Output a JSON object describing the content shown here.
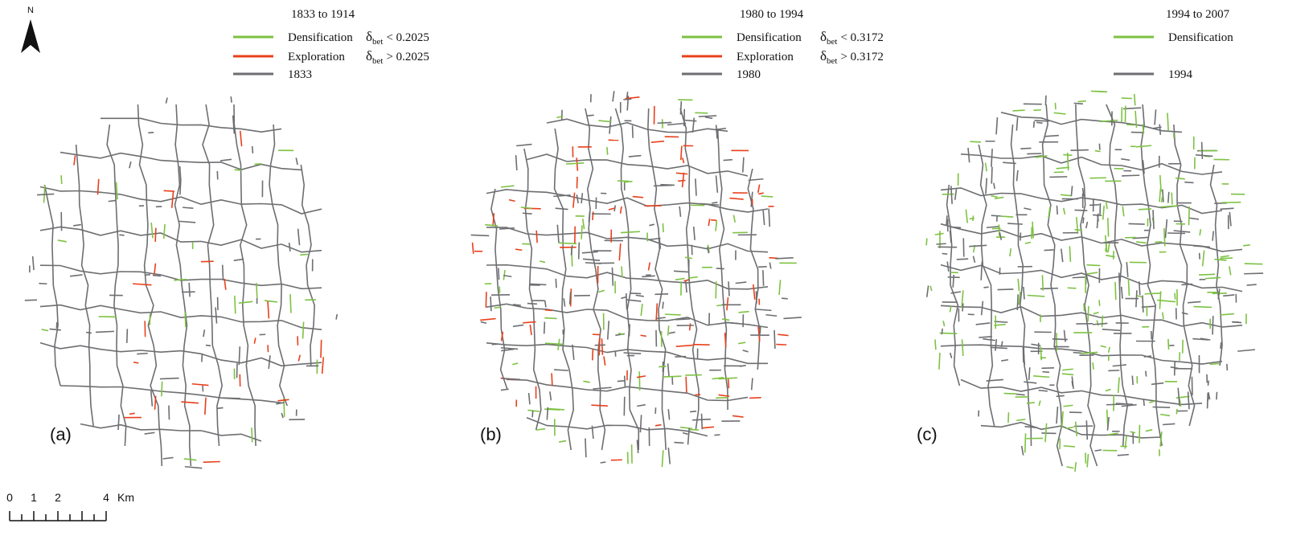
{
  "north_arrow": {
    "label": "N"
  },
  "panels": [
    {
      "label": "(a)",
      "legend": {
        "title": "1833 to 1914",
        "items": [
          {
            "label": "Densification",
            "color": "#7dc242",
            "condition": {
              "symbol": "δ",
              "sub": "bet",
              "text": "< 0.2025"
            }
          },
          {
            "label": "Exploration",
            "color": "#e8401c",
            "condition": {
              "symbol": "δ",
              "sub": "bet",
              "text": "> 0.2025"
            }
          },
          {
            "label": "1833",
            "color": "#6d6e71"
          }
        ]
      }
    },
    {
      "label": "(b)",
      "legend": {
        "title": "1980 to 1994",
        "items": [
          {
            "label": "Densification",
            "color": "#7dc242",
            "condition": {
              "symbol": "δ",
              "sub": "bet",
              "text": "< 0.3172"
            }
          },
          {
            "label": "Exploration",
            "color": "#e8401c",
            "condition": {
              "symbol": "δ",
              "sub": "bet",
              "text": "> 0.3172"
            }
          },
          {
            "label": "1980",
            "color": "#6d6e71"
          }
        ]
      }
    },
    {
      "label": "(c)",
      "legend": {
        "title": "1994 to 2007",
        "items": [
          {
            "label": "Densification",
            "color": "#7dc242"
          },
          {
            "label": "1994",
            "color": "#6d6e71"
          }
        ]
      }
    }
  ],
  "scale_bar": {
    "ticks": [
      "0",
      "1",
      "2",
      "4"
    ],
    "unit": "Km"
  }
}
